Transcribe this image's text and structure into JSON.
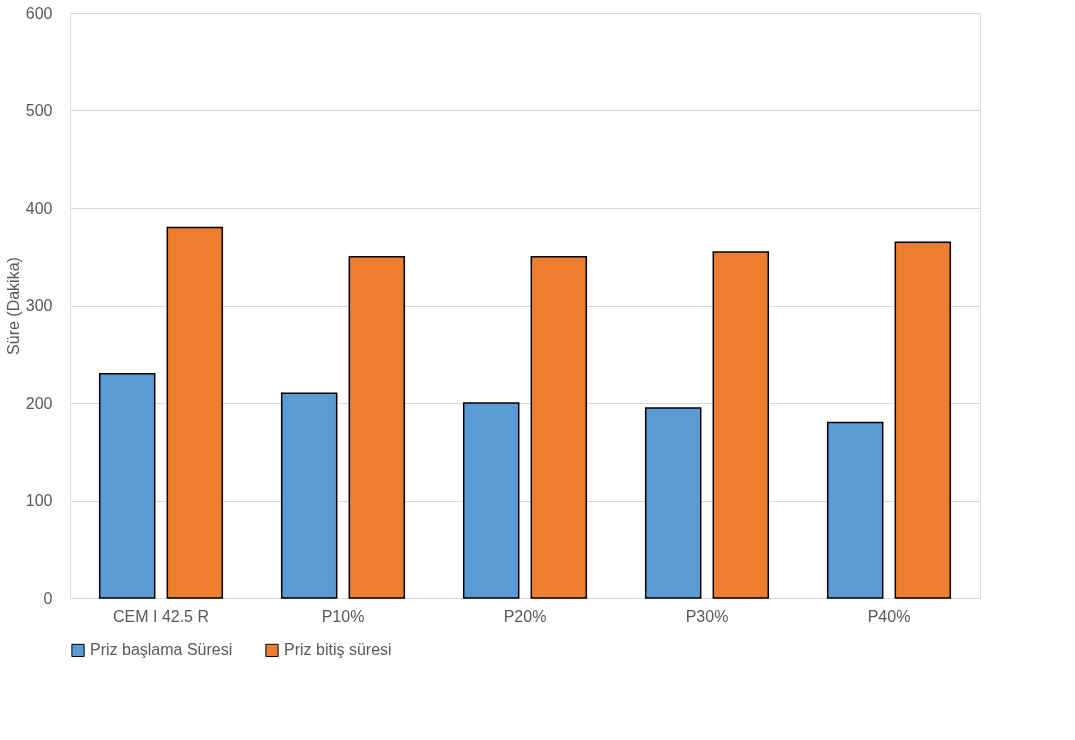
{
  "chart_data": {
    "type": "bar",
    "ylabel": "Süre (Dakika)",
    "categories": [
      "CEM I 42.5 R",
      "P10%",
      "P20%",
      "P30%",
      "P40%"
    ],
    "series": [
      {
        "name": "Priz başlama Süresi",
        "color": "#5b9bd5",
        "values": [
          230,
          210,
          200,
          195,
          180
        ]
      },
      {
        "name": "Priz bitiş süresi",
        "color": "#ed7d31",
        "values": [
          380,
          350,
          350,
          355,
          365
        ]
      }
    ],
    "ylim": [
      0,
      600
    ],
    "yticks": [
      0,
      100,
      200,
      300,
      400,
      500,
      600
    ],
    "grid": "y",
    "legend": "bottom"
  }
}
